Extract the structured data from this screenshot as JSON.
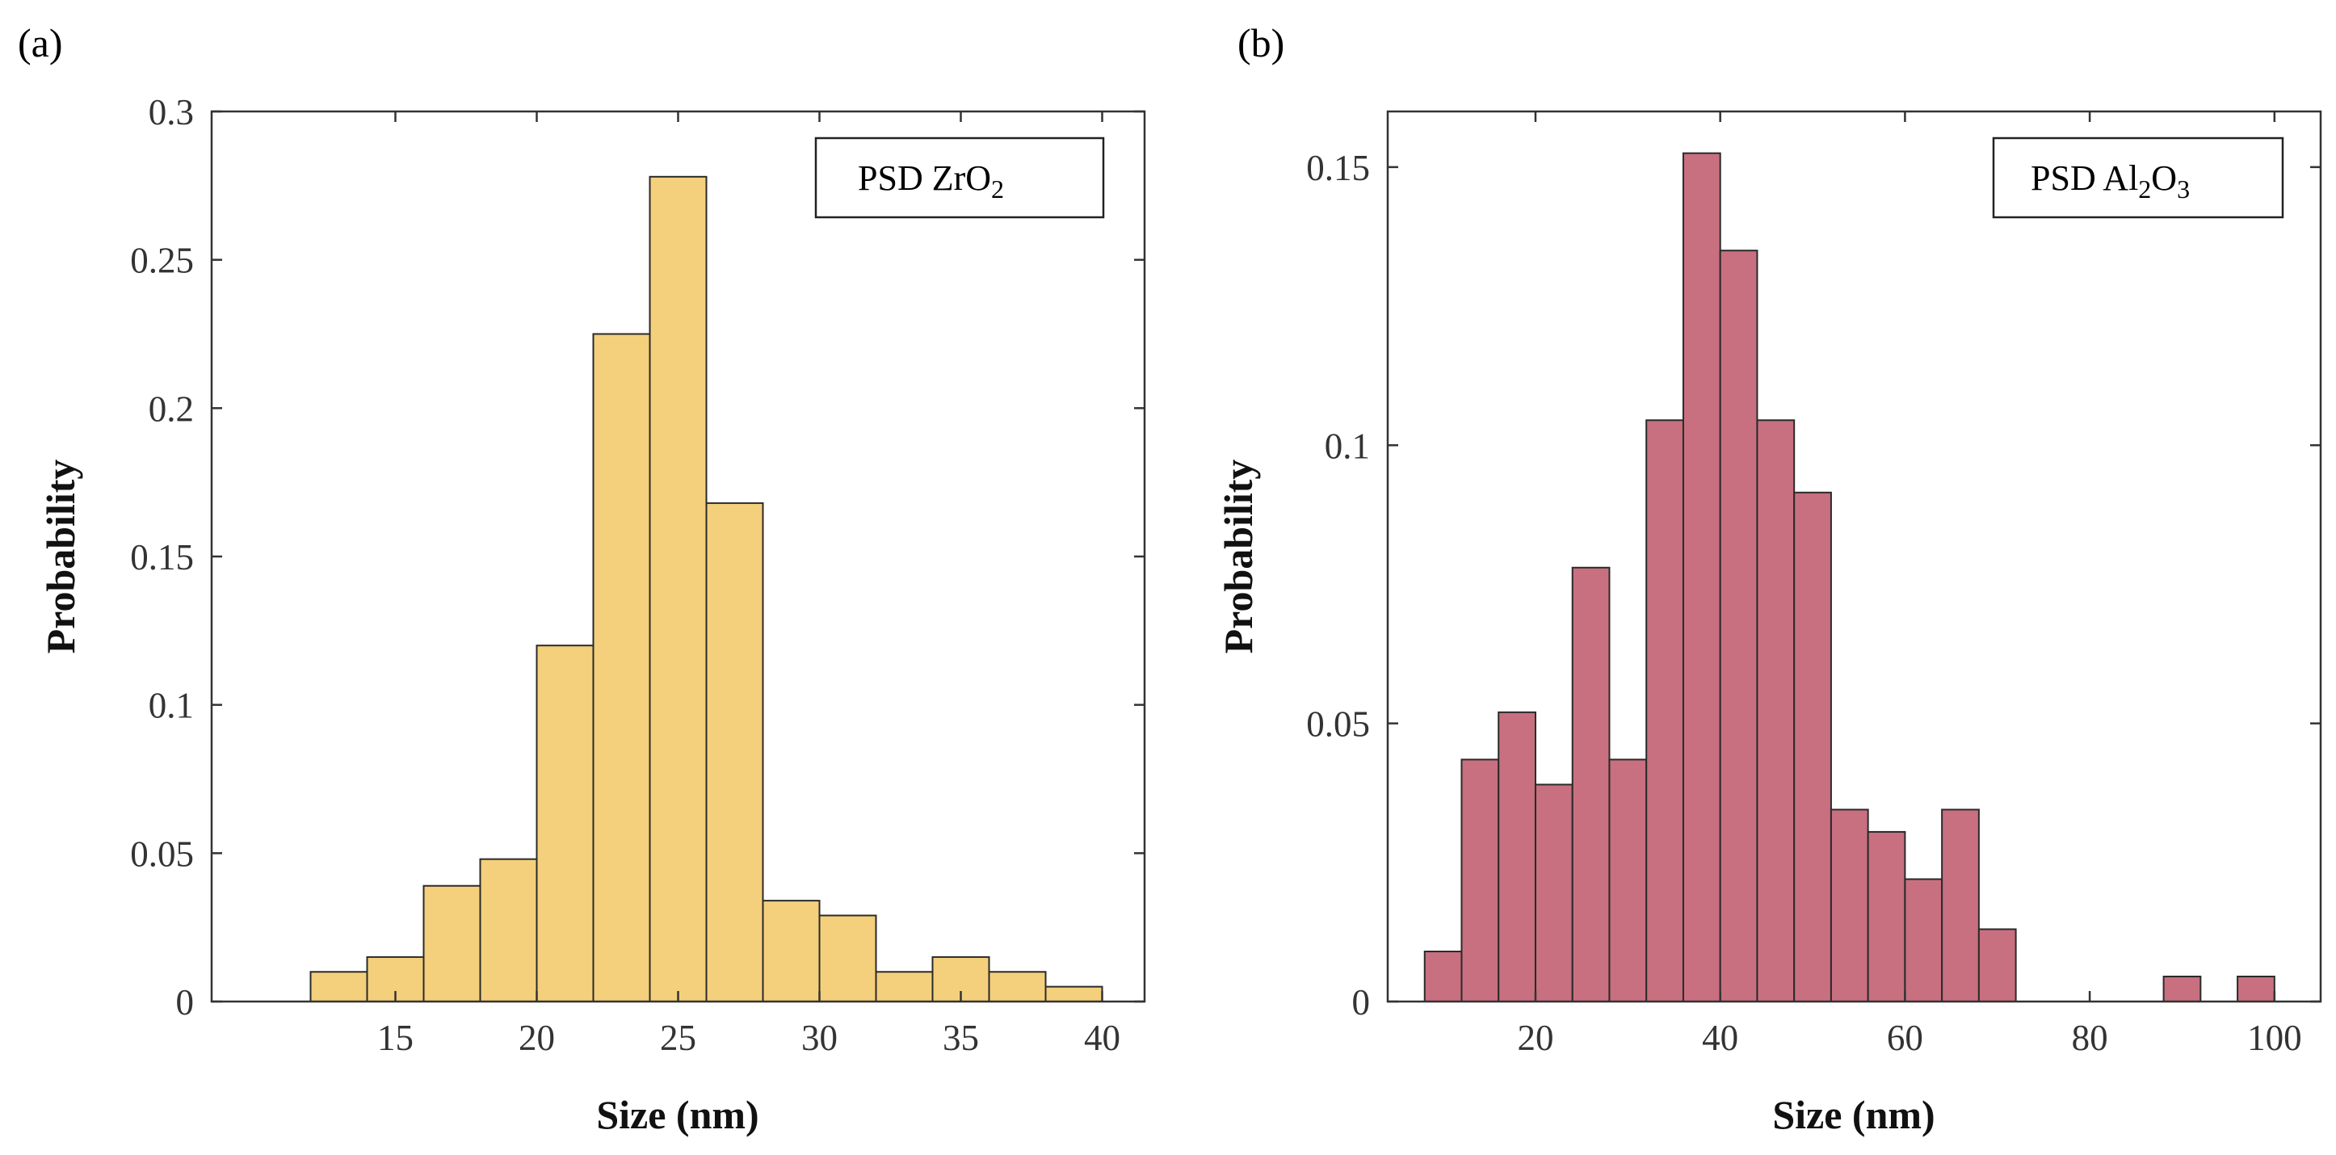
{
  "chart_data": [
    {
      "type": "bar",
      "panel_label": "(a)",
      "legend": {
        "main": "PSD ZrO",
        "sub": "2",
        "placement": "top-right"
      },
      "xlabel": "Size (nm)",
      "ylabel": "Probability",
      "bar_color": "#F4D07C",
      "bin_edges": [
        12,
        14,
        16,
        18,
        20,
        22,
        24,
        26,
        28,
        30,
        32,
        34,
        36,
        38,
        40
      ],
      "values": [
        0.01,
        0.015,
        0.039,
        0.048,
        0.12,
        0.225,
        0.278,
        0.168,
        0.034,
        0.029,
        0.01,
        0.015,
        0.01,
        0.005
      ],
      "xlim": [
        8.5,
        41.5
      ],
      "ylim": [
        0,
        0.3
      ],
      "xticks": [
        15,
        20,
        25,
        30,
        35,
        40
      ],
      "xtick_labels": [
        "15",
        "20",
        "25",
        "30",
        "35",
        "40"
      ],
      "yticks": [
        0,
        0.05,
        0.1,
        0.15,
        0.2,
        0.25,
        0.3
      ],
      "ytick_labels": [
        "0",
        "0.05",
        "0.1",
        "0.15",
        "0.2",
        "0.25",
        "0.3"
      ],
      "grid": false
    },
    {
      "type": "bar",
      "panel_label": "(b)",
      "legend": {
        "main": "PSD Al",
        "sub1": "2",
        "mid": "O",
        "sub2": "3",
        "placement": "top-right"
      },
      "xlabel": "Size (nm)",
      "ylabel": "Probability",
      "bar_color": "#C8707F",
      "bin_edges": [
        8,
        12,
        16,
        20,
        24,
        28,
        32,
        36,
        40,
        44,
        48,
        52,
        56,
        60,
        64,
        68,
        72,
        76,
        80,
        84,
        88,
        92,
        96,
        100
      ],
      "values": [
        0.009,
        0.0435,
        0.052,
        0.039,
        0.078,
        0.0435,
        0.1045,
        0.1525,
        0.135,
        0.1045,
        0.0915,
        0.0345,
        0.0305,
        0.022,
        0.0345,
        0.013,
        0,
        0,
        0,
        0,
        0.0045,
        0,
        0.0045
      ],
      "xlim": [
        4,
        105
      ],
      "ylim": [
        0,
        0.16
      ],
      "xticks": [
        20,
        40,
        60,
        80,
        100
      ],
      "xtick_labels": [
        "20",
        "40",
        "60",
        "80",
        "100"
      ],
      "yticks": [
        0,
        0.05,
        0.1,
        0.15
      ],
      "ytick_labels": [
        "0",
        "0.05",
        "0.1",
        "0.15"
      ],
      "grid": false
    }
  ]
}
